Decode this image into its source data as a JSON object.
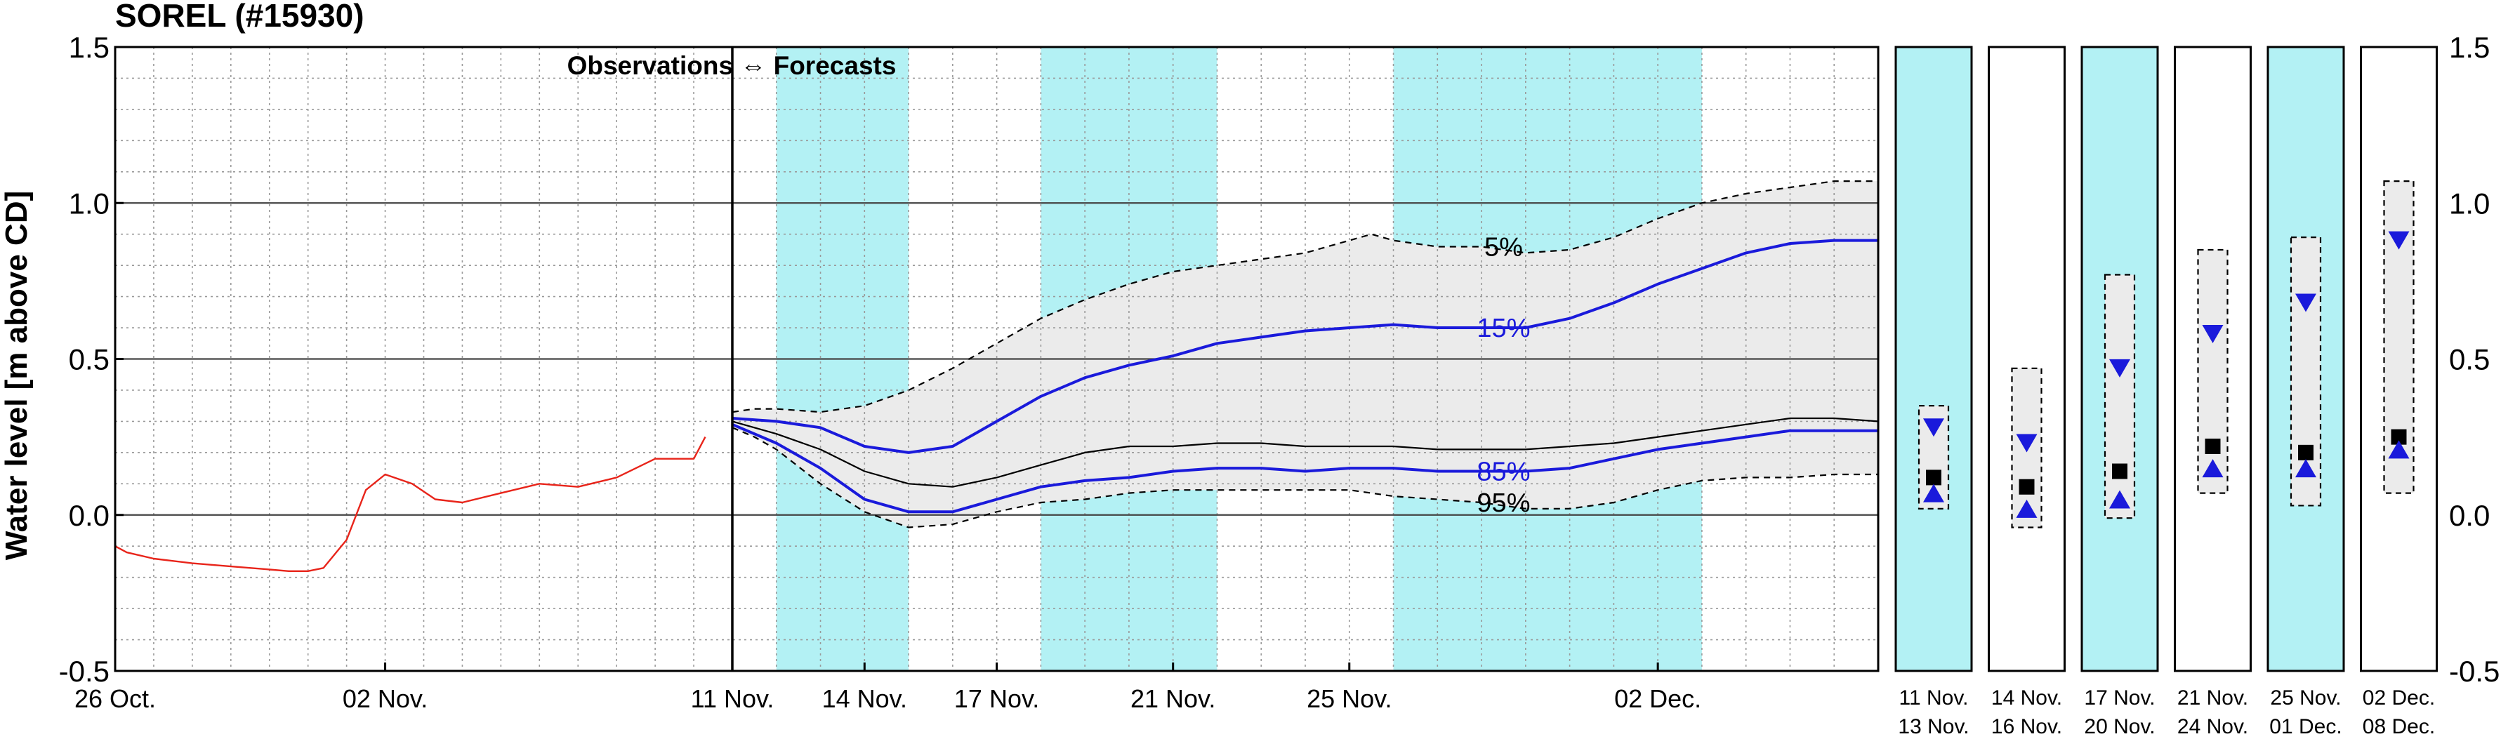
{
  "chart_data": {
    "type": "line",
    "title": "SOREL (#15930)",
    "ylabel": "Water level [m above CD]",
    "ylim": [
      -0.5,
      1.5
    ],
    "yticks": [
      -0.5,
      0.0,
      0.5,
      1.0,
      1.5
    ],
    "ytick_labels": [
      "-0.5",
      "0.0",
      "0.5",
      "1.0",
      "1.5"
    ],
    "xlim": [
      0,
      42
    ],
    "xticks": [
      {
        "x": 0,
        "label": "26 Oct."
      },
      {
        "x": 7,
        "label": "02 Nov."
      },
      {
        "x": 16,
        "label": "11 Nov."
      },
      {
        "x": 19,
        "label": "14 Nov."
      },
      {
        "x": 22,
        "label": "17 Nov."
      },
      {
        "x": 26,
        "label": "21 Nov."
      },
      {
        "x": 30,
        "label": "25 Nov."
      },
      {
        "x": 37,
        "label": "02 Dec."
      }
    ],
    "divider_x": 16,
    "annotation": "Observations ⇔ Forecasts",
    "grid": true,
    "shaded_ranges": [
      [
        17,
        20
      ],
      [
        23,
        27
      ],
      [
        31,
        38
      ]
    ],
    "band_outer": {
      "x": [
        16,
        16.5,
        17,
        18,
        19,
        20,
        21,
        22,
        23,
        24,
        25,
        26,
        27,
        28,
        29,
        30,
        30.5,
        31,
        32,
        33,
        34,
        35,
        36,
        37,
        38,
        39,
        40,
        41,
        42
      ],
      "upper": [
        0.33,
        0.34,
        0.34,
        0.33,
        0.35,
        0.4,
        0.47,
        0.55,
        0.63,
        0.69,
        0.74,
        0.78,
        0.8,
        0.82,
        0.84,
        0.88,
        0.9,
        0.88,
        0.86,
        0.86,
        0.84,
        0.85,
        0.89,
        0.95,
        1.0,
        1.03,
        1.05,
        1.07,
        1.07
      ],
      "lower": [
        0.28,
        0.25,
        0.21,
        0.1,
        0.01,
        -0.04,
        -0.03,
        0.01,
        0.04,
        0.05,
        0.07,
        0.08,
        0.08,
        0.08,
        0.08,
        0.08,
        0.07,
        0.06,
        0.05,
        0.04,
        0.02,
        0.02,
        0.04,
        0.08,
        0.11,
        0.12,
        0.12,
        0.13,
        0.13
      ]
    },
    "series": [
      {
        "name": "observations",
        "color": "#e8241a",
        "x": [
          0,
          0.3,
          1,
          2,
          3,
          4,
          4.5,
          5,
          5.4,
          6,
          6.5,
          7,
          7.7,
          8.3,
          9,
          10,
          11,
          12,
          13,
          14,
          15,
          15.3
        ],
        "y": [
          -0.1,
          -0.12,
          -0.14,
          -0.155,
          -0.165,
          -0.175,
          -0.18,
          -0.18,
          -0.17,
          -0.08,
          0.08,
          0.13,
          0.1,
          0.05,
          0.04,
          0.07,
          0.1,
          0.09,
          0.12,
          0.18,
          0.18,
          0.25
        ]
      },
      {
        "name": "5%",
        "style": "dashed",
        "color": "#000000",
        "x": [
          16,
          16.5,
          17,
          18,
          19,
          20,
          21,
          22,
          23,
          24,
          25,
          26,
          27,
          28,
          29,
          30,
          30.5,
          31,
          32,
          33,
          34,
          35,
          36,
          37,
          38,
          39,
          40,
          41,
          42
        ],
        "y": [
          0.33,
          0.34,
          0.34,
          0.33,
          0.35,
          0.4,
          0.47,
          0.55,
          0.63,
          0.69,
          0.74,
          0.78,
          0.8,
          0.82,
          0.84,
          0.88,
          0.9,
          0.88,
          0.86,
          0.86,
          0.84,
          0.85,
          0.89,
          0.95,
          1.0,
          1.03,
          1.05,
          1.07,
          1.07
        ]
      },
      {
        "name": "15%",
        "color": "#1a1adb",
        "x": [
          16,
          17,
          18,
          19,
          20,
          21,
          22,
          23,
          24,
          25,
          26,
          27,
          28,
          29,
          30,
          31,
          32,
          33,
          34,
          35,
          36,
          37,
          38,
          39,
          40,
          41,
          42
        ],
        "y": [
          0.31,
          0.3,
          0.28,
          0.22,
          0.2,
          0.22,
          0.3,
          0.38,
          0.44,
          0.48,
          0.51,
          0.55,
          0.57,
          0.59,
          0.6,
          0.61,
          0.6,
          0.6,
          0.6,
          0.63,
          0.68,
          0.74,
          0.79,
          0.84,
          0.87,
          0.88,
          0.88
        ]
      },
      {
        "name": "median",
        "color": "#000000",
        "x": [
          16,
          17,
          18,
          19,
          20,
          21,
          22,
          23,
          24,
          25,
          26,
          27,
          28,
          29,
          30,
          31,
          32,
          33,
          34,
          35,
          36,
          37,
          38,
          39,
          40,
          41,
          42
        ],
        "y": [
          0.3,
          0.26,
          0.21,
          0.14,
          0.1,
          0.09,
          0.12,
          0.16,
          0.2,
          0.22,
          0.22,
          0.23,
          0.23,
          0.22,
          0.22,
          0.22,
          0.21,
          0.21,
          0.21,
          0.22,
          0.23,
          0.25,
          0.27,
          0.29,
          0.31,
          0.31,
          0.3
        ]
      },
      {
        "name": "85%",
        "color": "#1a1adb",
        "x": [
          16,
          17,
          18,
          19,
          20,
          21,
          22,
          23,
          24,
          25,
          26,
          27,
          28,
          29,
          30,
          31,
          32,
          33,
          34,
          35,
          36,
          37,
          38,
          39,
          40,
          41,
          42
        ],
        "y": [
          0.29,
          0.23,
          0.15,
          0.05,
          0.01,
          0.01,
          0.05,
          0.09,
          0.11,
          0.12,
          0.14,
          0.15,
          0.15,
          0.14,
          0.15,
          0.15,
          0.14,
          0.14,
          0.14,
          0.15,
          0.18,
          0.21,
          0.23,
          0.25,
          0.27,
          0.27,
          0.27
        ]
      },
      {
        "name": "95%",
        "style": "dashed",
        "color": "#000000",
        "x": [
          16,
          16.5,
          17,
          18,
          19,
          20,
          21,
          22,
          23,
          24,
          25,
          26,
          27,
          28,
          29,
          30,
          30.5,
          31,
          32,
          33,
          34,
          35,
          36,
          37,
          38,
          39,
          40,
          41,
          42
        ],
        "y": [
          0.28,
          0.25,
          0.21,
          0.1,
          0.01,
          -0.04,
          -0.03,
          0.01,
          0.04,
          0.05,
          0.07,
          0.08,
          0.08,
          0.08,
          0.08,
          0.08,
          0.07,
          0.06,
          0.05,
          0.04,
          0.02,
          0.02,
          0.04,
          0.08,
          0.11,
          0.12,
          0.12,
          0.13,
          0.13
        ]
      }
    ],
    "curve_labels": [
      {
        "text": "5%",
        "x": 33.5,
        "y": 0.86,
        "color": "#000000"
      },
      {
        "text": "15%",
        "x": 33.5,
        "y": 0.6,
        "color": "#1a1adb"
      },
      {
        "text": "85%",
        "x": 33.5,
        "y": 0.14,
        "color": "#1a1adb"
      },
      {
        "text": "95%",
        "x": 33.5,
        "y": 0.04,
        "color": "#000000"
      }
    ],
    "period_panels": [
      {
        "label_top": "11 Nov.",
        "label_bottom": "13 Nov.",
        "shaded": true,
        "box": [
          0.02,
          0.35
        ],
        "p15": 0.28,
        "median": 0.12,
        "p85": 0.07
      },
      {
        "label_top": "14 Nov.",
        "label_bottom": "16 Nov.",
        "shaded": false,
        "box": [
          -0.04,
          0.47
        ],
        "p15": 0.23,
        "median": 0.09,
        "p85": 0.02
      },
      {
        "label_top": "17 Nov.",
        "label_bottom": "20 Nov.",
        "shaded": true,
        "box": [
          -0.01,
          0.77
        ],
        "p15": 0.47,
        "median": 0.14,
        "p85": 0.05
      },
      {
        "label_top": "21 Nov.",
        "label_bottom": "24 Nov.",
        "shaded": false,
        "box": [
          0.07,
          0.85
        ],
        "p15": 0.58,
        "median": 0.22,
        "p85": 0.15
      },
      {
        "label_top": "25 Nov.",
        "label_bottom": "01 Dec.",
        "shaded": true,
        "box": [
          0.03,
          0.89
        ],
        "p15": 0.68,
        "median": 0.2,
        "p85": 0.15
      },
      {
        "label_top": "02 Dec.",
        "label_bottom": "08 Dec.",
        "shaded": false,
        "box": [
          0.07,
          1.07
        ],
        "p15": 0.88,
        "median": 0.25,
        "p85": 0.21
      }
    ],
    "colors": {
      "shade": "#b3f1f4",
      "band": "#ebebeb",
      "blue": "#1a1adb",
      "red": "#e8241a"
    }
  }
}
